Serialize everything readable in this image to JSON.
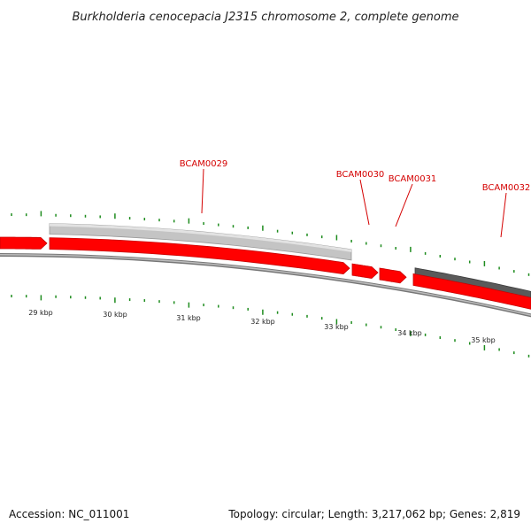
{
  "title": "Burkholderia cenocepacia J2315 chromosome 2, complete genome",
  "colors": {
    "forward_gene": "#ff0000",
    "forward_gene_dark": "#c80000",
    "reverse_gene_light": "#c4c4c4",
    "reverse_gene_dark": "#5a5a5a",
    "backbone": "#777777",
    "tick": "#1e8c1e",
    "label": "#d40000"
  },
  "genes": [
    {
      "id": "BCAM0029",
      "strand": "reverse",
      "shade": "light"
    },
    {
      "id": "BCAM0030",
      "strand": "forward"
    },
    {
      "id": "BCAM0031",
      "strand": "forward"
    },
    {
      "id": "BCAM0032",
      "strand": "reverse",
      "shade": "dark"
    }
  ],
  "scale": {
    "unit": "kbp",
    "labels": [
      "29 kbp",
      "30 kbp",
      "31 kbp",
      "32 kbp",
      "33 kbp",
      "34 kbp",
      "35 kbp"
    ]
  },
  "footer": {
    "accession": "Accession: NC_011001",
    "summary": "Topology: circular; Length: 3,217,062 bp; Genes: 2,819"
  }
}
